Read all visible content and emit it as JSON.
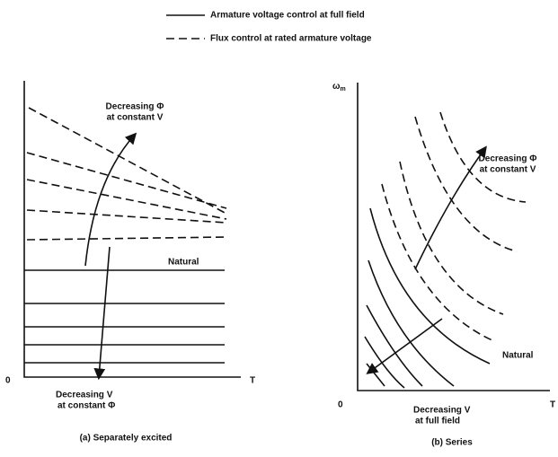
{
  "legend": {
    "solid": "Armature voltage control at full field",
    "dashed": "Flux control at rated armature voltage"
  },
  "left_panel": {
    "flux_label": [
      "Decreasing Φ",
      "at constant V"
    ],
    "natural": "Natural",
    "voltage_label": [
      "Decreasing V",
      "at constant Φ"
    ],
    "origin": "0",
    "x_axis": "T",
    "caption": "(a)  Separately excited"
  },
  "right_panel": {
    "y_axis": "ω",
    "y_axis_sub": "m",
    "flux_label": [
      "Decreasing Φ",
      "at constant V"
    ],
    "natural": "Natural",
    "voltage_label": [
      "Decreasing V",
      "at full field"
    ],
    "origin": "0",
    "x_axis": "T",
    "caption": "(b)  Series"
  }
}
